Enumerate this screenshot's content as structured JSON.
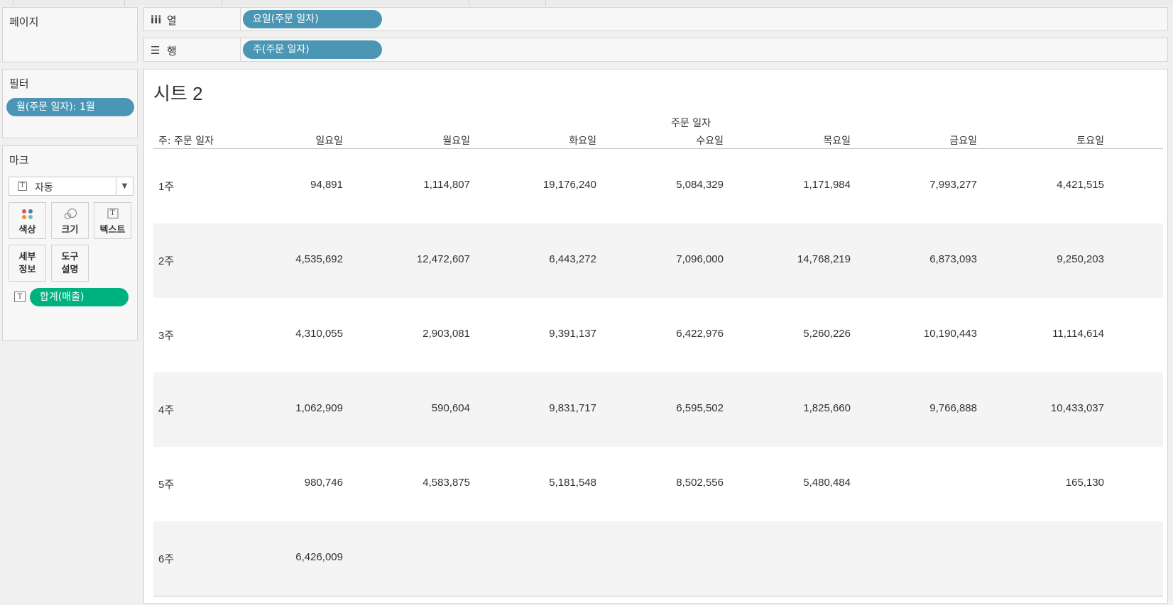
{
  "pages_card": {
    "title": "페이지"
  },
  "filters_card": {
    "title": "필터",
    "pill": "월(주문 일자): 1월"
  },
  "marks_card": {
    "title": "마크",
    "mark_type": "자동",
    "buttons": {
      "color": "색상",
      "size": "크기",
      "text": "텍스트",
      "detail_line1": "세부",
      "detail_line2": "정보",
      "tooltip_line1": "도구",
      "tooltip_line2": "설명"
    },
    "field_pill": "합계(매출)"
  },
  "columns_shelf": {
    "icon": "iii",
    "label": "열",
    "pill": "요일(주문 일자)"
  },
  "rows_shelf": {
    "icon": "☰",
    "label": "행",
    "pill": "주(주문 일자)"
  },
  "view": {
    "title": "시트 2",
    "column_group_header": "주문 일자",
    "row_header": "주: 주문 일자",
    "columns": [
      "일요일",
      "월요일",
      "화요일",
      "수요일",
      "목요일",
      "금요일",
      "토요일"
    ],
    "rows": [
      {
        "label": "1주",
        "values": [
          "94,891",
          "1,114,807",
          "19,176,240",
          "5,084,329",
          "1,171,984",
          "7,993,277",
          "4,421,515"
        ]
      },
      {
        "label": "2주",
        "values": [
          "4,535,692",
          "12,472,607",
          "6,443,272",
          "7,096,000",
          "14,768,219",
          "6,873,093",
          "9,250,203"
        ]
      },
      {
        "label": "3주",
        "values": [
          "4,310,055",
          "2,903,081",
          "9,391,137",
          "6,422,976",
          "5,260,226",
          "10,190,443",
          "11,114,614"
        ]
      },
      {
        "label": "4주",
        "values": [
          "1,062,909",
          "590,604",
          "9,831,717",
          "6,595,502",
          "1,825,660",
          "9,766,888",
          "10,433,037"
        ]
      },
      {
        "label": "5주",
        "values": [
          "980,746",
          "4,583,875",
          "5,181,548",
          "8,502,556",
          "5,480,484",
          "",
          "165,130"
        ]
      },
      {
        "label": "6주",
        "values": [
          "6,426,009",
          "",
          "",
          "",
          "",
          "",
          ""
        ]
      }
    ]
  },
  "colors": {
    "pill_blue": "#4a96b4",
    "pill_green": "#00b180",
    "row_alt": "#f4f4f4"
  }
}
